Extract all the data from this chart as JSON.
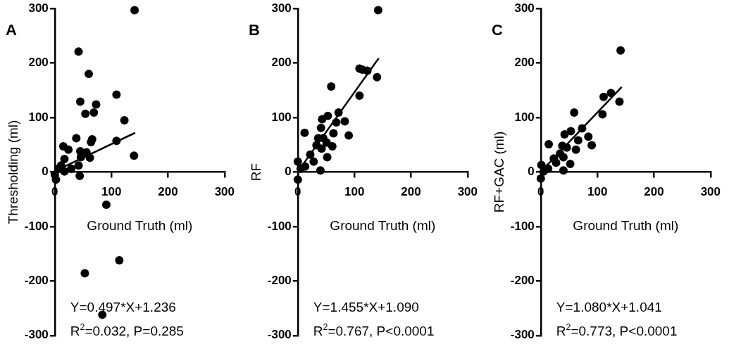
{
  "chart_data": [
    {
      "type": "scatter",
      "ylabel": "Thresholding (ml)",
      "xlabel": "Ground Truth (ml)",
      "xlim": [
        0,
        300
      ],
      "ylim": [
        -300,
        300
      ],
      "xticks": [
        0,
        100,
        200,
        300
      ],
      "yticks": [
        -300,
        -200,
        -100,
        0,
        100,
        200,
        300
      ],
      "marker": "circle",
      "series": [
        {
          "color": "#000000",
          "x": [
            141,
            42,
            60,
            109,
            45,
            73,
            54,
            69,
            123,
            38,
            66,
            64,
            109,
            15,
            24,
            140,
            17,
            45,
            56,
            46,
            62,
            11,
            42,
            7,
            17,
            29,
            44,
            0,
            2,
            91,
            114,
            53,
            84
          ],
          "values": [
            297,
            221,
            180,
            142,
            129,
            124,
            107,
            109,
            95,
            62,
            60,
            55,
            57,
            47,
            41,
            30,
            24,
            38,
            36,
            27,
            26,
            12,
            12,
            6,
            1,
            6,
            -7,
            -5,
            -14,
            -60,
            -162,
            -186,
            -262
          ]
        },
        {
          "type": "line",
          "color": "#000000",
          "marker": "none",
          "x": [
            3,
            142
          ],
          "values": [
            3,
            72
          ]
        }
      ],
      "annotations": [
        "A",
        "Y=0.497*X+1.236",
        "R$^{2}$=0.032, P=0.285"
      ]
    },
    {
      "type": "scatter",
      "ylabel": "RF",
      "xlabel": "Ground Truth (ml)",
      "xlim": [
        0,
        300
      ],
      "ylim": [
        -300,
        300
      ],
      "xticks": [
        0,
        100,
        200,
        300
      ],
      "yticks": [
        -300,
        -200,
        -100,
        0,
        100,
        200,
        300
      ],
      "marker": "circle",
      "series": [
        {
          "color": "#000000",
          "x": [
            142,
            109,
            123,
            140,
            114,
            59,
            109,
            72,
            53,
            43,
            83,
            68,
            12,
            41,
            90,
            63,
            36,
            45,
            51,
            61,
            33,
            42,
            22,
            52,
            28,
            0,
            13,
            5,
            40,
            0
          ],
          "values": [
            297,
            190,
            186,
            174,
            188,
            157,
            140,
            109,
            103,
            97,
            93,
            91,
            72,
            81,
            67,
            71,
            62,
            62,
            54,
            47,
            49,
            43,
            32,
            27,
            19,
            19,
            10,
            6,
            3,
            -14
          ]
        },
        {
          "type": "line",
          "color": "#000000",
          "marker": "none",
          "x": [
            3,
            143
          ],
          "values": [
            5,
            209
          ]
        }
      ],
      "annotations": [
        "B",
        "Y=1.455*X+1.090",
        "R$^{2}$=0.767, P<0.0001"
      ]
    },
    {
      "type": "scatter",
      "ylabel": "RF+GAC (ml)",
      "xlabel": "Ground Truth (ml)",
      "xlim": [
        0,
        300
      ],
      "ylim": [
        -300,
        300
      ],
      "xticks": [
        0,
        100,
        200,
        300
      ],
      "yticks": [
        -300,
        -200,
        -100,
        0,
        100,
        200,
        300
      ],
      "marker": "circle",
      "series": [
        {
          "color": "#000000",
          "x": [
            141,
            139,
            124,
            111,
            109,
            59,
            42,
            53,
            73,
            84,
            90,
            14,
            66,
            38,
            46,
            62,
            34,
            23,
            40,
            52,
            27,
            1,
            13,
            40,
            5,
            0
          ],
          "values": [
            223,
            129,
            145,
            138,
            106,
            109,
            69,
            75,
            80,
            65,
            49,
            51,
            58,
            48,
            45,
            41,
            34,
            25,
            27,
            15,
            17,
            13,
            6,
            3,
            1,
            -12
          ]
        },
        {
          "type": "line",
          "color": "#000000",
          "marker": "none",
          "x": [
            5,
            143
          ],
          "values": [
            6,
            156
          ]
        }
      ],
      "annotations": [
        "C",
        "Y=1.080*X+1.041",
        "R$^{2}$=0.773, P<0.0001"
      ]
    }
  ]
}
